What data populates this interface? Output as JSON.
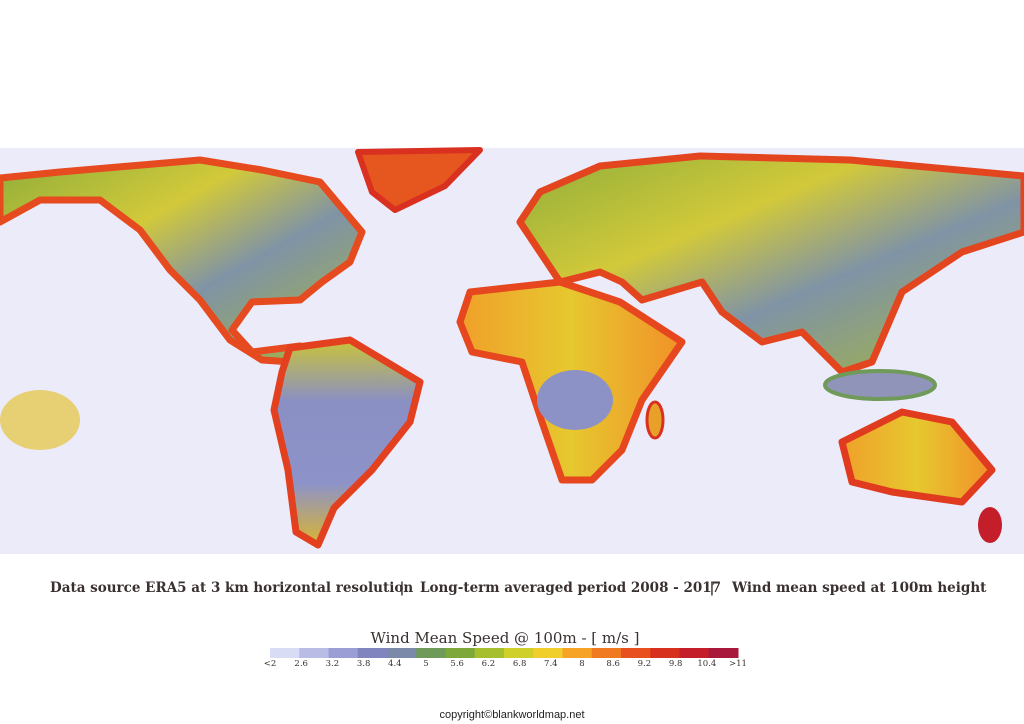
{
  "caption": {
    "parts": [
      "Data source ERA5 at 3 km horizontal  resolution",
      "Long-term averaged period 2008 - 2017",
      "Wind mean speed at 100m height"
    ],
    "separator": "|"
  },
  "legend": {
    "title": "Wind Mean Speed @ 100m - [ m/s ]",
    "labels": [
      "<2",
      "2.6",
      "3.2",
      "3.8",
      "4.4",
      "5",
      "5.6",
      "6.2",
      "6.8",
      "7.4",
      "8",
      "8.6",
      "9.2",
      "9.8",
      "10.4",
      ">11"
    ],
    "colors": [
      "#d8dcf4",
      "#b9bde6",
      "#9a9ed4",
      "#8085bf",
      "#7a8aa8",
      "#6f9a5a",
      "#7fa83a",
      "#a6bf2e",
      "#cfd12a",
      "#f0cf2c",
      "#f6a326",
      "#f07a22",
      "#e8501f",
      "#d8301f",
      "#c41e2a",
      "#a8183a"
    ]
  },
  "footer": "copyright©blankworldmap.net"
}
